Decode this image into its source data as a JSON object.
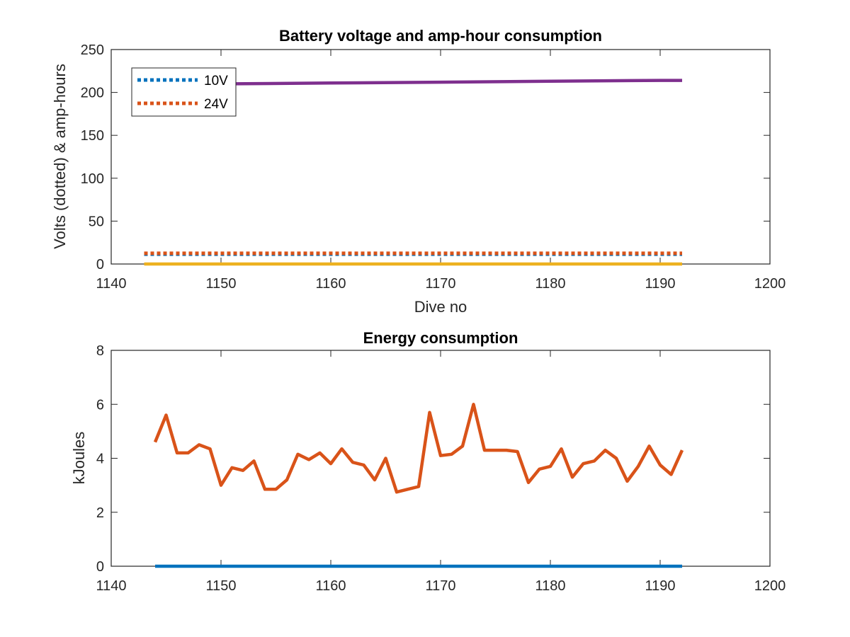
{
  "chart_data": [
    {
      "type": "line",
      "title": "Battery voltage and amp-hour consumption",
      "xlabel": "Dive no",
      "ylabel": "Volts (dotted) & amp-hours",
      "xlim": [
        1140,
        1200
      ],
      "ylim": [
        0,
        250
      ],
      "xticks": [
        "1140",
        "1150",
        "1160",
        "1170",
        "1180",
        "1190",
        "1200"
      ],
      "yticks": [
        "0",
        "50",
        "100",
        "150",
        "200",
        "250"
      ],
      "grid": false,
      "legend_position": "top-left",
      "series": [
        {
          "name": "10V",
          "style": "dotted",
          "color": "#0072BD",
          "x": [
            1143,
            1192
          ],
          "y": [
            11.5,
            11.5
          ]
        },
        {
          "name": "24V",
          "style": "dotted",
          "color": "#D95319",
          "x": [
            1143,
            1192
          ],
          "y": [
            12.5,
            12.5
          ]
        },
        {
          "style": "solid",
          "color": "#EDB120",
          "x": [
            1143,
            1192
          ],
          "y": [
            0,
            0
          ]
        },
        {
          "style": "solid",
          "color": "#7E2F8E",
          "x": [
            1143,
            1150,
            1160,
            1170,
            1180,
            1190,
            1192
          ],
          "y": [
            210,
            210,
            211,
            212,
            213,
            214,
            214
          ]
        }
      ]
    },
    {
      "type": "line",
      "title": "Energy consumption",
      "xlabel": "",
      "ylabel": "kJoules",
      "xlim": [
        1140,
        1200
      ],
      "ylim": [
        0,
        8
      ],
      "xticks": [
        "1140",
        "1150",
        "1160",
        "1170",
        "1180",
        "1190",
        "1200"
      ],
      "yticks": [
        "0",
        "2",
        "4",
        "6",
        "8"
      ],
      "grid": false,
      "series": [
        {
          "style": "solid",
          "color": "#0072BD",
          "x": [
            1144,
            1192
          ],
          "y": [
            0,
            0
          ]
        },
        {
          "style": "solid",
          "color": "#D95319",
          "x": [
            1144,
            1145,
            1146,
            1147,
            1148,
            1149,
            1150,
            1151,
            1152,
            1153,
            1154,
            1155,
            1156,
            1157,
            1158,
            1159,
            1160,
            1161,
            1162,
            1163,
            1164,
            1165,
            1166,
            1167,
            1168,
            1169,
            1170,
            1171,
            1172,
            1173,
            1174,
            1175,
            1176,
            1177,
            1178,
            1179,
            1180,
            1181,
            1182,
            1183,
            1184,
            1185,
            1186,
            1187,
            1188,
            1189,
            1190,
            1191,
            1192
          ],
          "y": [
            4.6,
            5.6,
            4.2,
            4.2,
            4.5,
            4.35,
            3.0,
            3.65,
            3.55,
            3.9,
            2.85,
            2.85,
            3.2,
            4.15,
            3.95,
            4.2,
            3.8,
            4.35,
            3.85,
            3.75,
            3.2,
            4.0,
            2.75,
            2.85,
            2.95,
            5.7,
            4.1,
            4.15,
            4.45,
            6.0,
            4.3,
            4.3,
            4.3,
            4.25,
            3.1,
            3.6,
            3.7,
            4.35,
            3.3,
            3.8,
            3.9,
            4.3,
            4.0,
            3.15,
            3.7,
            4.45,
            3.75,
            3.4,
            4.3
          ]
        }
      ]
    }
  ]
}
